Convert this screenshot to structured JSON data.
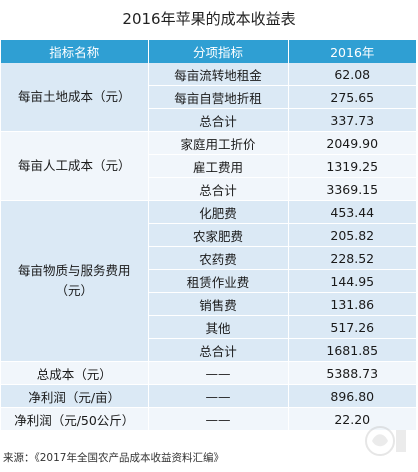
{
  "title": "2016年苹果的成本收益表",
  "table": {
    "headers": [
      "指标名称",
      "分项指标",
      "2016年"
    ],
    "groups": [
      {
        "category": "每亩土地成本（元）",
        "rows": [
          {
            "item": "每亩流转地租金",
            "value": "62.08"
          },
          {
            "item": "每亩自营地折租",
            "value": "275.65"
          },
          {
            "item": "总合计",
            "value": "337.73"
          }
        ]
      },
      {
        "category": "每亩人工成本（元）",
        "rows": [
          {
            "item": "家庭用工折价",
            "value": "2049.90"
          },
          {
            "item": "雇工费用",
            "value": "1319.25"
          },
          {
            "item": "总合计",
            "value": "3369.15"
          }
        ]
      },
      {
        "category_lines": [
          "每亩物质与服务费用",
          "（元）"
        ],
        "rows": [
          {
            "item": "化肥费",
            "value": "453.44"
          },
          {
            "item": "农家肥费",
            "value": "205.82"
          },
          {
            "item": "农药费",
            "value": "228.52"
          },
          {
            "item": "租赁作业费",
            "value": "144.95"
          },
          {
            "item": "销售费",
            "value": "131.86"
          },
          {
            "item": "其他",
            "value": "517.26"
          },
          {
            "item": "总合计",
            "value": "1681.85"
          }
        ]
      }
    ],
    "summary": [
      {
        "label": "总成本（元）",
        "item": "——",
        "value": "5388.73"
      },
      {
        "label": "净利润（元/亩）",
        "item": "——",
        "value": "896.80"
      },
      {
        "label": "净利润（元/50公斤）",
        "item": "——",
        "value": "22.20"
      }
    ]
  },
  "source": "来源：《2017年全国农产品成本收益资料汇编》",
  "colors": {
    "header_bg": "#2f9fd3",
    "band_dark": "#dbe9f5",
    "band_light": "#f1f6fb"
  },
  "watermark_icon": "logo-watermark-icon"
}
